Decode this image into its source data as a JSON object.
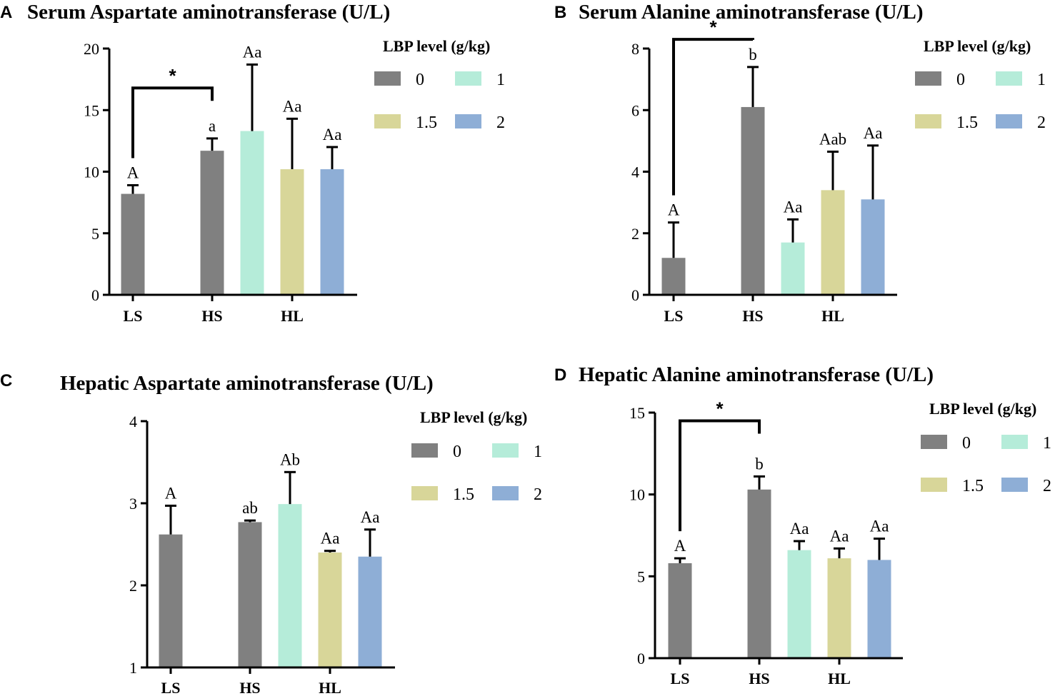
{
  "colors": {
    "0": "#808080",
    "1": "#b5ecd9",
    "1.5": "#d8d699",
    "2": "#8eaed6",
    "axis": "#000000"
  },
  "legend": {
    "title": "LBP level (g/kg)",
    "entries": [
      {
        "key": "0",
        "label": "0"
      },
      {
        "key": "1",
        "label": "1"
      },
      {
        "key": "1.5",
        "label": "1.5"
      },
      {
        "key": "2",
        "label": "2"
      }
    ]
  },
  "chart_data": [
    {
      "panel": "A",
      "type": "bar",
      "title": "Serum Aspartate aminotransferase (U/L)",
      "ylim": [
        0,
        20
      ],
      "yticks": [
        "0",
        "5",
        "10",
        "15",
        "20"
      ],
      "ytick_values": [
        0,
        5,
        10,
        15,
        20
      ],
      "categories": [
        "LS",
        "HS",
        "HL"
      ],
      "bars": [
        {
          "category": "LS",
          "level": "0",
          "value": 8.2,
          "error": 0.7,
          "label": "A"
        },
        {
          "category": "HS",
          "level": "0",
          "value": 11.7,
          "error": 1.0,
          "label": "a"
        },
        {
          "category": "HL",
          "level": "1",
          "value": 13.3,
          "error": 5.4,
          "label": "Aa"
        },
        {
          "category": "HL",
          "level": "1.5",
          "value": 10.2,
          "error": 4.1,
          "label": "Aa"
        },
        {
          "category": "HL",
          "level": "2",
          "value": 10.2,
          "error": 1.8,
          "label": "Aa"
        }
      ],
      "significance": {
        "from": 0,
        "to": 1,
        "y": 16.8,
        "label": "*"
      }
    },
    {
      "panel": "B",
      "type": "bar",
      "title": "Serum Alanine aminotransferase (U/L)",
      "ylim": [
        0,
        8
      ],
      "yticks": [
        "0",
        "2",
        "4",
        "6",
        "8"
      ],
      "ytick_values": [
        0,
        2,
        4,
        6,
        8
      ],
      "categories": [
        "LS",
        "HS",
        "HL"
      ],
      "bars": [
        {
          "category": "LS",
          "level": "0",
          "value": 1.2,
          "error": 1.15,
          "label": "A"
        },
        {
          "category": "HS",
          "level": "0",
          "value": 6.1,
          "error": 1.3,
          "label": "b"
        },
        {
          "category": "HL",
          "level": "1",
          "value": 1.7,
          "error": 0.75,
          "label": "Aa"
        },
        {
          "category": "HL",
          "level": "1.5",
          "value": 3.4,
          "error": 1.25,
          "label": "Aab"
        },
        {
          "category": "HL",
          "level": "2",
          "value": 3.1,
          "error": 1.75,
          "label": "Aa"
        }
      ],
      "significance": {
        "from": 0,
        "to": 1,
        "y": 8.3,
        "label": "*"
      }
    },
    {
      "panel": "C",
      "type": "bar",
      "title": "Hepatic Aspartate aminotransferase (U/L)",
      "ylim": [
        1,
        4
      ],
      "yticks": [
        "1",
        "2",
        "3",
        "4"
      ],
      "ytick_values": [
        1,
        2,
        3,
        4
      ],
      "categories": [
        "LS",
        "HS",
        "HL"
      ],
      "bars": [
        {
          "category": "LS",
          "level": "0",
          "value": 2.62,
          "error": 0.35,
          "label": "A"
        },
        {
          "category": "HS",
          "level": "0",
          "value": 2.77,
          "error": 0.02,
          "label": "ab"
        },
        {
          "category": "HL",
          "level": "1",
          "value": 2.99,
          "error": 0.39,
          "label": "Ab"
        },
        {
          "category": "HL",
          "level": "1.5",
          "value": 2.4,
          "error": 0.02,
          "label": "Aa"
        },
        {
          "category": "HL",
          "level": "2",
          "value": 2.35,
          "error": 0.33,
          "label": "Aa"
        }
      ],
      "significance": null
    },
    {
      "panel": "D",
      "type": "bar",
      "title": "Hepatic Alanine aminotransferase (U/L)",
      "ylim": [
        0,
        15
      ],
      "yticks": [
        "0",
        "5",
        "10",
        "15"
      ],
      "ytick_values": [
        0,
        5,
        10,
        15
      ],
      "categories": [
        "LS",
        "HS",
        "HL"
      ],
      "bars": [
        {
          "category": "LS",
          "level": "0",
          "value": 5.8,
          "error": 0.3,
          "label": "A"
        },
        {
          "category": "HS",
          "level": "0",
          "value": 10.3,
          "error": 0.8,
          "label": "b"
        },
        {
          "category": "HL",
          "level": "1",
          "value": 6.6,
          "error": 0.55,
          "label": "Aa"
        },
        {
          "category": "HL",
          "level": "1.5",
          "value": 6.1,
          "error": 0.6,
          "label": "Aa"
        },
        {
          "category": "HL",
          "level": "2",
          "value": 6.0,
          "error": 1.3,
          "label": "Aa"
        }
      ],
      "significance": {
        "from": 0,
        "to": 1,
        "y": 14.5,
        "label": "*"
      }
    }
  ]
}
